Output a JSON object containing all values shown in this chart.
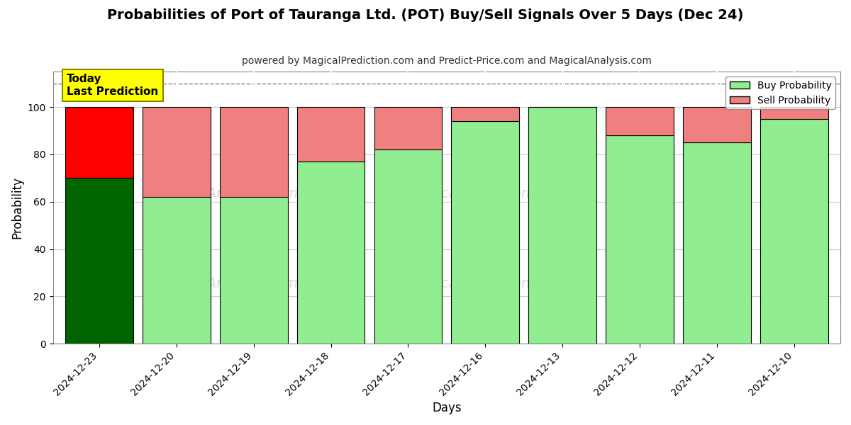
{
  "title": "Probabilities of Port of Tauranga Ltd. (POT) Buy/Sell Signals Over 5 Days (Dec 24)",
  "subtitle": "powered by MagicalPrediction.com and Predict-Price.com and MagicalAnalysis.com",
  "xlabel": "Days",
  "ylabel": "Probability",
  "dates": [
    "2024-12-23",
    "2024-12-20",
    "2024-12-19",
    "2024-12-18",
    "2024-12-17",
    "2024-12-16",
    "2024-12-13",
    "2024-12-12",
    "2024-12-11",
    "2024-12-10"
  ],
  "buy_probs": [
    70,
    62,
    62,
    77,
    82,
    94,
    100,
    88,
    85,
    95
  ],
  "sell_probs": [
    30,
    38,
    38,
    23,
    18,
    6,
    0,
    12,
    15,
    5
  ],
  "today_buy_color": "#006400",
  "today_sell_color": "#FF0000",
  "buy_color": "#90EE90",
  "sell_color": "#F08080",
  "bar_edge_color": "#000000",
  "ylim": [
    0,
    115
  ],
  "yticks": [
    0,
    20,
    40,
    60,
    80,
    100
  ],
  "dashed_line_y": 110,
  "watermark_color": "#d0d0d0",
  "today_label_bg": "#FFFF00",
  "today_label_text": "Today\nLast Prediction",
  "legend_buy_label": "Buy Probability",
  "legend_sell_label": "Sell Probability",
  "bg_color": "#ffffff",
  "plot_bg_color": "#ffffff",
  "grid_color": "#cccccc",
  "title_fontsize": 14,
  "subtitle_fontsize": 10,
  "axis_label_fontsize": 12,
  "tick_fontsize": 10,
  "bar_width": 0.88
}
